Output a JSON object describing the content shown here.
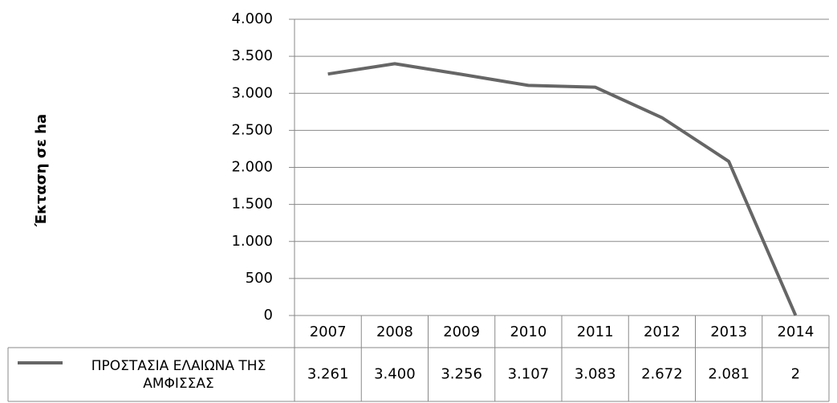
{
  "chart_data": {
    "type": "line",
    "y_label": "Έκταση σε ha",
    "categories": [
      "2007",
      "2008",
      "2009",
      "2010",
      "2011",
      "2012",
      "2013",
      "2014"
    ],
    "series": [
      {
        "name": "ΠΡΟΣΤΑΣΙΑ ΕΛΑΙΩΝΑ ΤΗΣ ΑΜΦΙΣΣΑΣ",
        "color": "#666666",
        "values": [
          3261,
          3400,
          3256,
          3107,
          3083,
          2672,
          2081,
          2
        ],
        "value_labels": [
          "3.261",
          "3.400",
          "3.256",
          "3.107",
          "3.083",
          "2.672",
          "2.081",
          "2"
        ]
      }
    ],
    "ylim": [
      0,
      4000
    ],
    "yticks": [
      0,
      500,
      {
        "value": 1000,
        "label": "1.000"
      },
      {
        "value": 1500,
        "label": "1.500"
      },
      {
        "value": 2000,
        "label": "2.000"
      },
      {
        "value": 2500,
        "label": "2.500"
      },
      {
        "value": 3000,
        "label": "3.000"
      },
      {
        "value": 3500,
        "label": "3.500"
      },
      {
        "value": 4000,
        "label": "4.000"
      }
    ],
    "grid": true
  }
}
